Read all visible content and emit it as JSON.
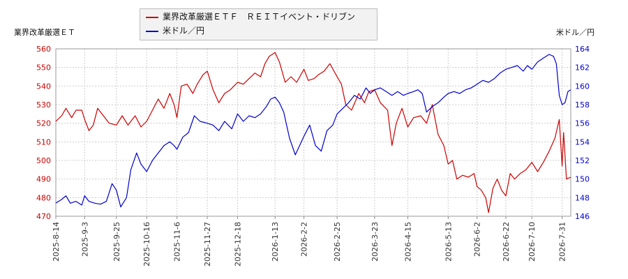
{
  "chart_data": {
    "type": "line",
    "legend": [
      {
        "name": "業界改革厳選ＥＴＦ　ＲＥＩＴイベント・ドリブン",
        "color": "#cc0000",
        "axis": "left"
      },
      {
        "name": "米ドル／円",
        "color": "#0000cc",
        "axis": "right"
      }
    ],
    "ylabel_left": "業界改革厳選ＥＴ",
    "ylabel_right": "米ドル／円",
    "ylim_left": [
      470,
      560
    ],
    "ylim_right": [
      146,
      164
    ],
    "yticks_left": [
      470,
      480,
      490,
      500,
      510,
      520,
      530,
      540,
      550,
      560
    ],
    "yticks_right": [
      146,
      148,
      150,
      152,
      154,
      156,
      158,
      160,
      162,
      164
    ],
    "xlim": [
      "2025-8-14",
      "2026-8-6"
    ],
    "xticks": [
      "2025-8-14",
      "2025-9-3",
      "2025-9-25",
      "2025-10-16",
      "2025-11-6",
      "2025-11-27",
      "2025-12-18",
      "2026-1-13",
      "2026-2-2",
      "2026-2-25",
      "2026-3-23",
      "2026-4-15",
      "2026-5-13",
      "2026-6-2",
      "2026-6-22",
      "2026-7-10",
      "2026-7-31"
    ],
    "grid": true,
    "series": [
      {
        "name": "業界改革厳選ＥＴＦ　ＲＥＩＴイベント・ドリブン",
        "axis": "left",
        "points": [
          [
            "2025-8-14",
            521
          ],
          [
            "2025-8-18",
            524
          ],
          [
            "2025-8-21",
            528
          ],
          [
            "2025-8-25",
            523
          ],
          [
            "2025-8-28",
            527
          ],
          [
            "2025-9-1",
            527
          ],
          [
            "2025-9-3",
            522
          ],
          [
            "2025-9-6",
            516
          ],
          [
            "2025-9-9",
            519
          ],
          [
            "2025-9-12",
            528
          ],
          [
            "2025-9-16",
            524
          ],
          [
            "2025-9-20",
            520
          ],
          [
            "2025-9-25",
            519
          ],
          [
            "2025-9-29",
            524
          ],
          [
            "2025-10-3",
            519
          ],
          [
            "2025-10-8",
            524
          ],
          [
            "2025-10-12",
            518
          ],
          [
            "2025-10-16",
            521
          ],
          [
            "2025-10-20",
            527
          ],
          [
            "2025-10-24",
            533
          ],
          [
            "2025-10-28",
            528
          ],
          [
            "2025-11-1",
            536
          ],
          [
            "2025-11-4",
            530
          ],
          [
            "2025-11-6",
            523
          ],
          [
            "2025-11-9",
            540
          ],
          [
            "2025-11-13",
            541
          ],
          [
            "2025-11-17",
            536
          ],
          [
            "2025-11-20",
            541
          ],
          [
            "2025-11-24",
            546
          ],
          [
            "2025-11-27",
            548
          ],
          [
            "2025-12-1",
            538
          ],
          [
            "2025-12-5",
            531
          ],
          [
            "2025-12-9",
            536
          ],
          [
            "2025-12-13",
            538
          ],
          [
            "2025-12-18",
            542
          ],
          [
            "2025-12-22",
            541
          ],
          [
            "2025-12-26",
            544
          ],
          [
            "2025-12-30",
            547
          ],
          [
            "2026-1-3",
            545
          ],
          [
            "2026-1-6",
            552
          ],
          [
            "2026-1-9",
            556
          ],
          [
            "2026-1-13",
            558
          ],
          [
            "2026-1-16",
            553
          ],
          [
            "2026-1-20",
            542
          ],
          [
            "2026-1-24",
            545
          ],
          [
            "2026-1-28",
            542
          ],
          [
            "2026-2-2",
            549
          ],
          [
            "2026-2-5",
            543
          ],
          [
            "2026-2-9",
            544
          ],
          [
            "2026-2-12",
            546
          ],
          [
            "2026-2-16",
            548
          ],
          [
            "2026-2-20",
            552
          ],
          [
            "2026-2-25",
            545
          ],
          [
            "2026-2-28",
            541
          ],
          [
            "2026-3-3",
            530
          ],
          [
            "2026-3-7",
            527
          ],
          [
            "2026-3-12",
            536
          ],
          [
            "2026-3-16",
            531
          ],
          [
            "2026-3-19",
            537
          ],
          [
            "2026-3-23",
            538
          ],
          [
            "2026-3-27",
            531
          ],
          [
            "2026-4-1",
            527
          ],
          [
            "2026-4-4",
            508
          ],
          [
            "2026-4-7",
            520
          ],
          [
            "2026-4-11",
            528
          ],
          [
            "2026-4-15",
            518
          ],
          [
            "2026-4-19",
            523
          ],
          [
            "2026-4-24",
            524
          ],
          [
            "2026-4-28",
            520
          ],
          [
            "2026-5-2",
            530
          ],
          [
            "2026-5-6",
            514
          ],
          [
            "2026-5-10",
            508
          ],
          [
            "2026-5-13",
            498
          ],
          [
            "2026-5-16",
            500
          ],
          [
            "2026-5-19",
            490
          ],
          [
            "2026-5-23",
            492
          ],
          [
            "2026-5-27",
            491
          ],
          [
            "2026-5-31",
            493
          ],
          [
            "2026-6-2",
            486
          ],
          [
            "2026-6-5",
            484
          ],
          [
            "2026-6-8",
            480
          ],
          [
            "2026-6-10",
            472
          ],
          [
            "2026-6-13",
            485
          ],
          [
            "2026-6-16",
            490
          ],
          [
            "2026-6-19",
            484
          ],
          [
            "2026-6-22",
            481
          ],
          [
            "2026-6-25",
            493
          ],
          [
            "2026-6-28",
            490
          ],
          [
            "2026-7-2",
            493
          ],
          [
            "2026-7-6",
            495
          ],
          [
            "2026-7-10",
            499
          ],
          [
            "2026-7-14",
            494
          ],
          [
            "2026-7-18",
            499
          ],
          [
            "2026-7-22",
            505
          ],
          [
            "2026-7-26",
            512
          ],
          [
            "2026-7-29",
            522
          ],
          [
            "2026-7-31",
            497
          ],
          [
            "2026-8-1",
            515
          ],
          [
            "2026-8-3",
            490
          ],
          [
            "2026-8-6",
            491
          ]
        ]
      },
      {
        "name": "米ドル／円",
        "axis": "right",
        "points": [
          [
            "2025-8-14",
            147.4
          ],
          [
            "2025-8-18",
            147.8
          ],
          [
            "2025-8-21",
            148.2
          ],
          [
            "2025-8-24",
            147.4
          ],
          [
            "2025-8-28",
            147.6
          ],
          [
            "2025-9-1",
            147.2
          ],
          [
            "2025-9-3",
            148.2
          ],
          [
            "2025-9-6",
            147.6
          ],
          [
            "2025-9-10",
            147.4
          ],
          [
            "2025-9-14",
            147.3
          ],
          [
            "2025-9-18",
            147.6
          ],
          [
            "2025-9-22",
            149.5
          ],
          [
            "2025-9-25",
            148.8
          ],
          [
            "2025-9-28",
            147.0
          ],
          [
            "2025-10-2",
            148.0
          ],
          [
            "2025-10-5",
            151.0
          ],
          [
            "2025-10-9",
            152.8
          ],
          [
            "2025-10-12",
            151.6
          ],
          [
            "2025-10-16",
            150.8
          ],
          [
            "2025-10-20",
            152.0
          ],
          [
            "2025-10-24",
            152.8
          ],
          [
            "2025-10-28",
            153.6
          ],
          [
            "2025-11-1",
            154.0
          ],
          [
            "2025-11-4",
            153.6
          ],
          [
            "2025-11-6",
            153.2
          ],
          [
            "2025-11-10",
            154.5
          ],
          [
            "2025-11-14",
            155.0
          ],
          [
            "2025-11-18",
            156.8
          ],
          [
            "2025-11-22",
            156.2
          ],
          [
            "2025-11-27",
            156.0
          ],
          [
            "2025-12-1",
            155.8
          ],
          [
            "2025-12-5",
            155.2
          ],
          [
            "2025-12-9",
            156.2
          ],
          [
            "2025-12-14",
            155.4
          ],
          [
            "2025-12-18",
            157.0
          ],
          [
            "2025-12-22",
            156.2
          ],
          [
            "2025-12-26",
            156.8
          ],
          [
            "2025-12-30",
            156.6
          ],
          [
            "2026-1-3",
            157.0
          ],
          [
            "2026-1-7",
            157.8
          ],
          [
            "2026-1-10",
            158.6
          ],
          [
            "2026-1-13",
            158.8
          ],
          [
            "2026-1-16",
            158.2
          ],
          [
            "2026-1-19",
            157.2
          ],
          [
            "2026-1-23",
            154.4
          ],
          [
            "2026-1-27",
            152.6
          ],
          [
            "2026-1-30",
            153.6
          ],
          [
            "2026-2-2",
            154.6
          ],
          [
            "2026-2-6",
            155.8
          ],
          [
            "2026-2-10",
            153.6
          ],
          [
            "2026-2-14",
            153.0
          ],
          [
            "2026-2-18",
            155.2
          ],
          [
            "2026-2-22",
            155.8
          ],
          [
            "2026-2-25",
            157.0
          ],
          [
            "2026-3-1",
            157.6
          ],
          [
            "2026-3-5",
            158.2
          ],
          [
            "2026-3-9",
            159.0
          ],
          [
            "2026-3-13",
            158.6
          ],
          [
            "2026-3-17",
            159.8
          ],
          [
            "2026-3-20",
            159.2
          ],
          [
            "2026-3-23",
            159.6
          ],
          [
            "2026-3-27",
            159.8
          ],
          [
            "2026-3-31",
            159.4
          ],
          [
            "2026-4-4",
            159.0
          ],
          [
            "2026-4-8",
            159.4
          ],
          [
            "2026-4-12",
            159.0
          ],
          [
            "2026-4-15",
            159.2
          ],
          [
            "2026-4-19",
            159.4
          ],
          [
            "2026-4-22",
            159.6
          ],
          [
            "2026-4-25",
            159.2
          ],
          [
            "2026-4-28",
            157.2
          ],
          [
            "2026-5-2",
            157.8
          ],
          [
            "2026-5-6",
            158.2
          ],
          [
            "2026-5-10",
            158.8
          ],
          [
            "2026-5-13",
            159.2
          ],
          [
            "2026-5-17",
            159.4
          ],
          [
            "2026-5-21",
            159.2
          ],
          [
            "2026-5-25",
            159.6
          ],
          [
            "2026-5-29",
            159.8
          ],
          [
            "2026-6-2",
            160.2
          ],
          [
            "2026-6-6",
            160.6
          ],
          [
            "2026-6-10",
            160.4
          ],
          [
            "2026-6-14",
            160.8
          ],
          [
            "2026-6-18",
            161.4
          ],
          [
            "2026-6-22",
            161.8
          ],
          [
            "2026-6-26",
            162.0
          ],
          [
            "2026-6-30",
            162.2
          ],
          [
            "2026-7-4",
            161.6
          ],
          [
            "2026-7-7",
            162.2
          ],
          [
            "2026-7-10",
            161.8
          ],
          [
            "2026-7-14",
            162.6
          ],
          [
            "2026-7-18",
            163.0
          ],
          [
            "2026-7-22",
            163.4
          ],
          [
            "2026-7-25",
            163.2
          ],
          [
            "2026-7-27",
            162.4
          ],
          [
            "2026-7-29",
            159.0
          ],
          [
            "2026-7-31",
            158.0
          ],
          [
            "2026-8-2",
            158.2
          ],
          [
            "2026-8-4",
            159.4
          ],
          [
            "2026-8-6",
            159.6
          ]
        ]
      }
    ]
  }
}
